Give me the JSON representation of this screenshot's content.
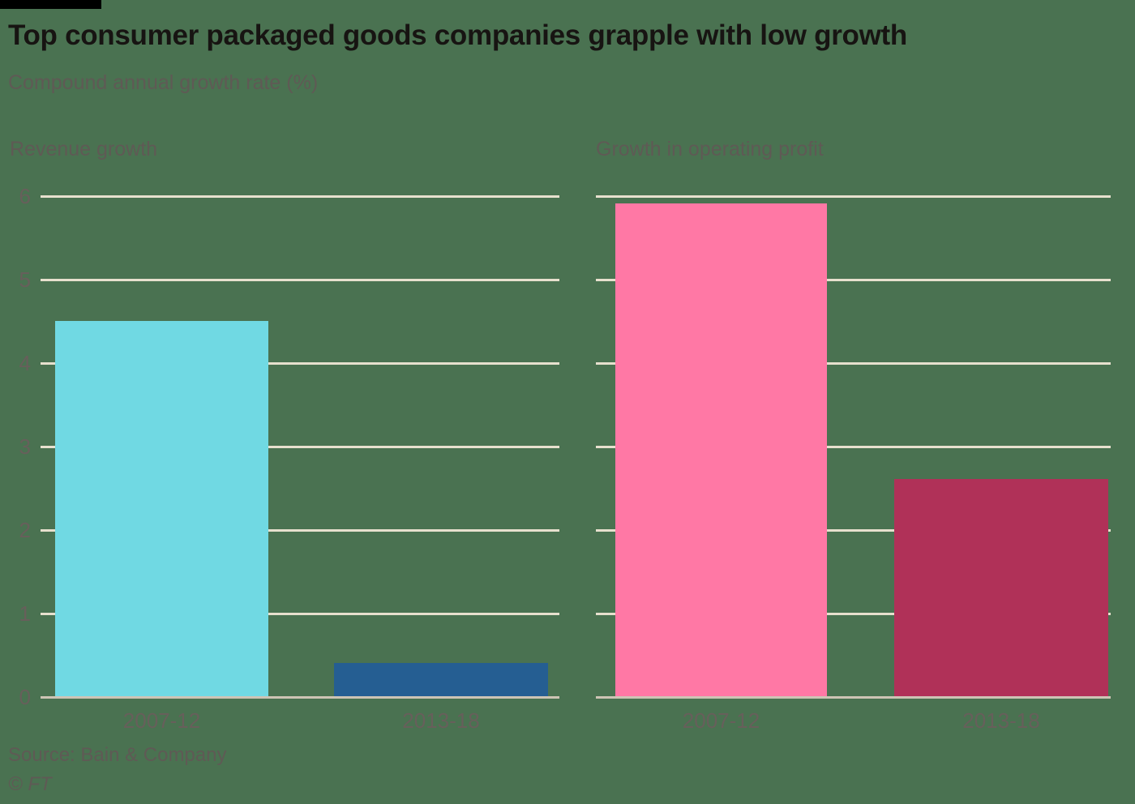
{
  "header": {
    "title": "Top consumer packaged goods companies grapple with low growth",
    "subtitle": "Compound annual growth rate (%)"
  },
  "footer": {
    "source": "Source: Bain & Company",
    "copyright": "© FT"
  },
  "colors": {
    "background": "#4a7251",
    "gridline": "#e7e0ce",
    "zero_line": "#cdc4b5",
    "title_text": "#171412",
    "muted_text": "#5f5a55",
    "revenue_2007_12": "#70d9e3",
    "revenue_2013_18": "#255e92",
    "profit_2007_12": "#ff78a5",
    "profit_2013_18": "#b03158"
  },
  "chart_data": [
    {
      "type": "bar",
      "title": "Revenue growth",
      "categories": [
        "2007-12",
        "2013-18"
      ],
      "values": [
        4.5,
        0.4
      ],
      "colors": [
        "#70d9e3",
        "#255e92"
      ],
      "xlabel": "",
      "ylabel": "Compound annual growth rate (%)",
      "ylim": [
        0,
        6
      ],
      "yticks": [
        0,
        1,
        2,
        3,
        4,
        5,
        6
      ],
      "grid": true,
      "legend": "none"
    },
    {
      "type": "bar",
      "title": "Growth in operating profit",
      "categories": [
        "2007-12",
        "2013-18"
      ],
      "values": [
        5.9,
        2.6
      ],
      "colors": [
        "#ff78a5",
        "#b03158"
      ],
      "xlabel": "",
      "ylabel": "Compound annual growth rate (%)",
      "ylim": [
        0,
        6
      ],
      "yticks": [
        0,
        1,
        2,
        3,
        4,
        5,
        6
      ],
      "grid": true,
      "legend": "none"
    }
  ]
}
